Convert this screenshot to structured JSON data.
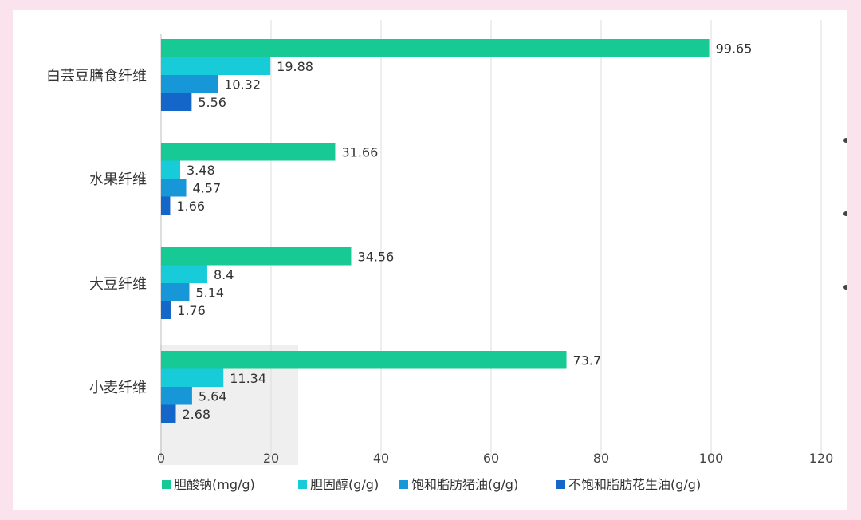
{
  "chart_data": {
    "type": "bar",
    "orientation": "horizontal",
    "categories": [
      "白芸豆膳食纤维",
      "水果纤维",
      "大豆纤维",
      "小麦纤维"
    ],
    "series": [
      {
        "name": "胆酸钠(mg/g)",
        "color": "#17c994",
        "values": [
          99.65,
          31.66,
          34.56,
          73.7
        ],
        "labels": [
          "99.65",
          "31.66",
          "34.56",
          "73.7"
        ]
      },
      {
        "name": "胆固醇(g/g)",
        "color": "#17cbd8",
        "values": [
          19.88,
          3.48,
          8.4,
          11.34
        ],
        "labels": [
          "19.88",
          "3.48",
          "8.4",
          "11.34"
        ]
      },
      {
        "name": "饱和脂肪猪油(g/g)",
        "color": "#1796d8",
        "values": [
          10.32,
          4.57,
          5.14,
          5.64
        ],
        "labels": [
          "10.32",
          "4.57",
          "5.14",
          "5.64"
        ]
      },
      {
        "name": "不饱和脂肪花生油(g/g)",
        "color": "#1466c9",
        "values": [
          5.56,
          1.66,
          1.76,
          2.68
        ],
        "labels": [
          "5.56",
          "1.66",
          "1.76",
          "2.68"
        ]
      }
    ],
    "xlim": [
      0,
      120
    ],
    "xticks": [
      "0",
      "20",
      "40",
      "60",
      "80",
      "100",
      "120"
    ],
    "grid": true,
    "legend": "bottom"
  }
}
